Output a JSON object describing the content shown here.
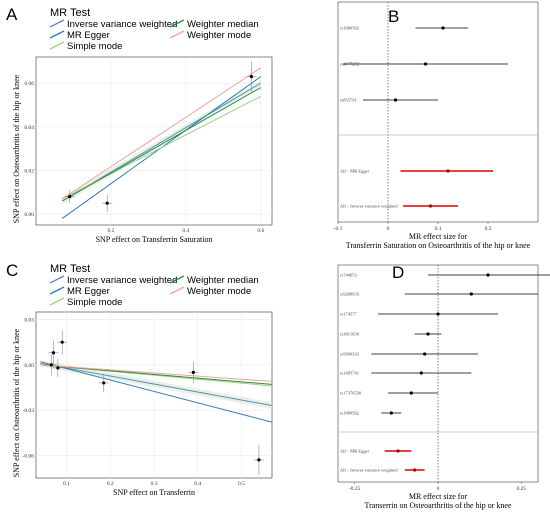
{
  "chart_data": [
    {
      "panel": "A",
      "type": "scatter",
      "legend_title": "MR Test",
      "legend": [
        {
          "name": "Inverse variance weighted",
          "color": "#5a8ac0"
        },
        {
          "name": "MR Egger",
          "color": "#2e7bbf"
        },
        {
          "name": "Simple mode",
          "color": "#9fd08a"
        },
        {
          "name": "Weighter median",
          "color": "#2a8f3a"
        },
        {
          "name": "Weighter mode",
          "color": "#f2a0a0"
        }
      ],
      "xlabel": "SNP effect on Transferrin Saturation",
      "ylabel": "SNP effect on Osteoarthritis of the hip or knee",
      "xlim": [
        0.0,
        0.63
      ],
      "ylim": [
        -0.005,
        0.072
      ],
      "xticks": [
        "0.2",
        "0.4",
        "0.6"
      ],
      "xtick_values": [
        0.2,
        0.4,
        0.6
      ],
      "yticks": [
        "0.00",
        "0.02",
        "0.04",
        "0.06"
      ],
      "ytick_values": [
        0.0,
        0.02,
        0.04,
        0.06
      ],
      "points": [
        {
          "x": 0.09,
          "y": 0.008,
          "err": 0.003
        },
        {
          "x": 0.19,
          "y": 0.005,
          "err": 0.004
        },
        {
          "x": 0.575,
          "y": 0.063,
          "err": 0.007
        }
      ],
      "lines": [
        {
          "name": "Inverse variance weighted",
          "x": [
            0.07,
            0.6
          ],
          "y": [
            0.006,
            0.06
          ]
        },
        {
          "name": "MR Egger",
          "x": [
            0.07,
            0.6
          ],
          "y": [
            -0.002,
            0.063
          ]
        },
        {
          "name": "Simple mode",
          "x": [
            0.07,
            0.6
          ],
          "y": [
            0.007,
            0.054
          ]
        },
        {
          "name": "Weighter median",
          "x": [
            0.07,
            0.6
          ],
          "y": [
            0.006,
            0.058
          ]
        },
        {
          "name": "Weighter mode",
          "x": [
            0.07,
            0.6
          ],
          "y": [
            0.007,
            0.067
          ]
        }
      ],
      "grid": true
    },
    {
      "panel": "B",
      "type": "scatter",
      "subtype": "forest",
      "xlabel_lines": [
        "MR effect size for",
        "Transferrin Saturation on Osteoarthritis of the hip or knee"
      ],
      "xlim": [
        -0.1,
        0.3
      ],
      "xticks": [
        "-0.1",
        "0",
        "0.1",
        "0.2"
      ],
      "xtick_values": [
        -0.1,
        0.0,
        0.1,
        0.2
      ],
      "rows": [
        {
          "label": "rs1800562",
          "est": 0.11,
          "lo": 0.055,
          "hi": 0.16,
          "color": "#000000"
        },
        {
          "label": "rs4177272",
          "est": 0.075,
          "lo": -0.09,
          "hi": 0.24,
          "color": "#000000"
        },
        {
          "label": "rs855791",
          "est": 0.015,
          "lo": -0.05,
          "hi": 0.1,
          "color": "#000000"
        },
        {
          "label": "All – MR Egger",
          "est": 0.12,
          "lo": 0.025,
          "hi": 0.21,
          "color": "#dd0000"
        },
        {
          "label": "All – Inverse variance weighted",
          "est": 0.085,
          "lo": 0.03,
          "hi": 0.14,
          "color": "#dd0000"
        }
      ]
    },
    {
      "panel": "C",
      "type": "scatter",
      "legend_title": "MR Test",
      "legend": [
        {
          "name": "Inverse variance weighted",
          "color": "#5a8ac0"
        },
        {
          "name": "MR Egger",
          "color": "#2e7bbf"
        },
        {
          "name": "Simple mode",
          "color": "#9fd08a"
        },
        {
          "name": "Weighter median",
          "color": "#2a8f3a"
        },
        {
          "name": "Weighter mode",
          "color": "#f2a0a0"
        }
      ],
      "xlabel": "SNP effect on Transferrin",
      "ylabel": "SNP effect on Osteoarthritis of the hip or knee",
      "xlim": [
        0.03,
        0.57
      ],
      "ylim": [
        -0.075,
        0.035
      ],
      "xticks": [
        "0.1",
        "0.2",
        "0.3",
        "0.4",
        "0.5"
      ],
      "xtick_values": [
        0.1,
        0.2,
        0.3,
        0.4,
        0.5
      ],
      "yticks": [
        "-0.06",
        "-0.03",
        "0.00",
        "0.03"
      ],
      "ytick_values": [
        -0.06,
        -0.03,
        0.0,
        0.03
      ],
      "points": [
        {
          "x": 0.065,
          "y": 0.0,
          "err": 0.007
        },
        {
          "x": 0.07,
          "y": 0.008,
          "err": 0.008
        },
        {
          "x": 0.08,
          "y": -0.002,
          "err": 0.006
        },
        {
          "x": 0.09,
          "y": 0.015,
          "err": 0.008
        },
        {
          "x": 0.185,
          "y": -0.012,
          "err": 0.006
        },
        {
          "x": 0.39,
          "y": -0.005,
          "err": 0.007
        },
        {
          "x": 0.54,
          "y": -0.063,
          "err": 0.01
        }
      ],
      "lines": [
        {
          "name": "Inverse variance weighted",
          "x": [
            0.04,
            0.57
          ],
          "y": [
            0.001,
            -0.027
          ]
        },
        {
          "name": "MR Egger",
          "x": [
            0.04,
            0.57
          ],
          "y": [
            0.002,
            -0.038
          ]
        },
        {
          "name": "Simple mode",
          "x": [
            0.04,
            0.57
          ],
          "y": [
            0.0,
            -0.014
          ]
        },
        {
          "name": "Weighter median",
          "x": [
            0.04,
            0.57
          ],
          "y": [
            0.0,
            -0.013
          ]
        },
        {
          "name": "Weighter mode",
          "x": [
            0.04,
            0.57
          ],
          "y": [
            0.0,
            -0.011
          ]
        }
      ],
      "grid": true
    },
    {
      "panel": "D",
      "type": "scatter",
      "subtype": "forest",
      "xlabel_lines": [
        "MR effect size for",
        "Transerrin on Osteoarthritis of the hip or knee"
      ],
      "xlim": [
        -0.3,
        0.3
      ],
      "xticks": [
        "-0.25",
        "0",
        "0.25"
      ],
      "xtick_values": [
        -0.25,
        0.0,
        0.25
      ],
      "rows": [
        {
          "label": "rs744653",
          "est": 0.15,
          "lo": -0.03,
          "hi": 0.35,
          "color": "#000000"
        },
        {
          "label": "rs9268633",
          "est": 0.1,
          "lo": -0.1,
          "hi": 0.3,
          "color": "#000000"
        },
        {
          "label": "rs174577",
          "est": 0.0,
          "lo": -0.18,
          "hi": 0.18,
          "color": "#000000"
        },
        {
          "label": "rs3811658",
          "est": -0.03,
          "lo": -0.07,
          "hi": 0.01,
          "color": "#000000"
        },
        {
          "label": "rs9990333",
          "est": -0.04,
          "lo": -0.2,
          "hi": 0.12,
          "color": "#000000"
        },
        {
          "label": "rs1495741",
          "est": -0.05,
          "lo": -0.2,
          "hi": 0.1,
          "color": "#000000"
        },
        {
          "label": "rs17376530",
          "est": -0.08,
          "lo": -0.15,
          "hi": 0.0,
          "color": "#000000"
        },
        {
          "label": "rs1800562",
          "est": -0.14,
          "lo": -0.17,
          "hi": -0.11,
          "color": "#000000"
        },
        {
          "label": "All – MR Egger",
          "est": -0.12,
          "lo": -0.16,
          "hi": -0.08,
          "color": "#dd0000"
        },
        {
          "label": "All – Inverse variance weighted",
          "est": -0.07,
          "lo": -0.1,
          "hi": -0.04,
          "color": "#dd0000"
        }
      ]
    }
  ],
  "panel_labels": {
    "a": "A",
    "b": "B",
    "c": "C",
    "d": "D"
  }
}
